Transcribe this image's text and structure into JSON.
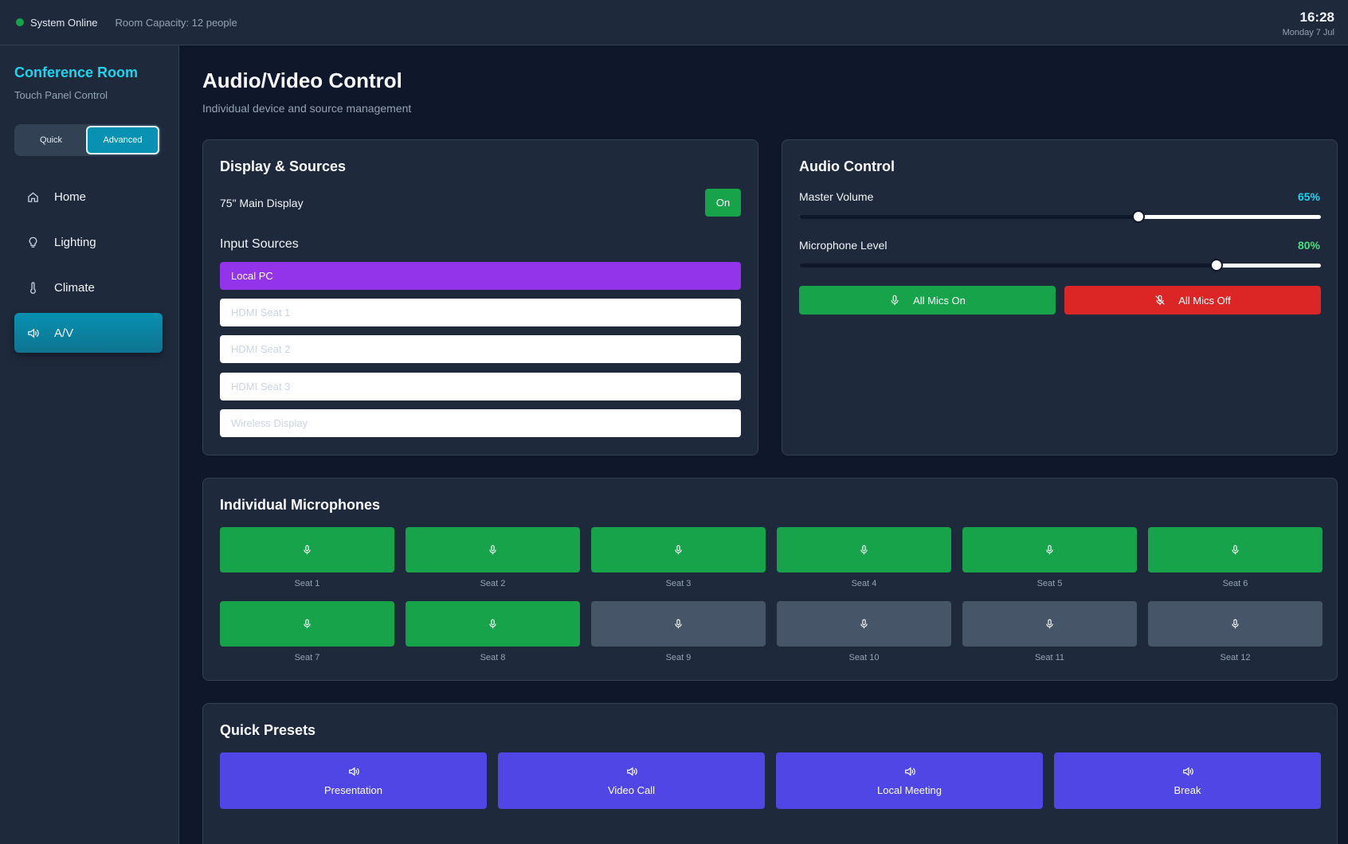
{
  "topbar": {
    "status": "System Online",
    "capacity": "Room Capacity: 12 people",
    "time": "16:28",
    "date": "Monday 7 Jul"
  },
  "sidebar": {
    "title": "Conference Room",
    "subtitle": "Touch Panel Control",
    "modes": [
      {
        "label": "Quick",
        "active": false
      },
      {
        "label": "Advanced",
        "active": true
      }
    ],
    "items": [
      {
        "label": "Home",
        "icon": "home-icon",
        "active": false
      },
      {
        "label": "Lighting",
        "icon": "lightbulb-icon",
        "active": false
      },
      {
        "label": "Climate",
        "icon": "thermometer-icon",
        "active": false
      },
      {
        "label": "A/V",
        "icon": "speaker-icon",
        "active": true
      }
    ]
  },
  "main": {
    "title": "Audio/Video Control",
    "subtitle": "Individual device and source management"
  },
  "display": {
    "title": "Display & Sources",
    "device": "75\" Main Display",
    "power_label": "On",
    "inputs_title": "Input Sources",
    "sources": [
      {
        "label": "Local PC",
        "active": true
      },
      {
        "label": "HDMI Seat 1",
        "active": false
      },
      {
        "label": "HDMI Seat 2",
        "active": false
      },
      {
        "label": "HDMI Seat 3",
        "active": false
      },
      {
        "label": "Wireless Display",
        "active": false
      }
    ]
  },
  "audio": {
    "title": "Audio Control",
    "master_label": "Master Volume",
    "master_value": "65%",
    "master_level": 0.65,
    "mic_label": "Microphone Level",
    "mic_value": "80%",
    "mic_level": 0.8,
    "all_on_label": "All Mics On",
    "all_off_label": "All Mics Off",
    "colors": {
      "master": "#22d3ee",
      "mic": "#4ade80",
      "on": "#16a34a",
      "off": "#dc2626"
    }
  },
  "mics": {
    "title": "Individual Microphones",
    "seats": [
      {
        "label": "Seat 1",
        "on": true
      },
      {
        "label": "Seat 2",
        "on": true
      },
      {
        "label": "Seat 3",
        "on": true
      },
      {
        "label": "Seat 4",
        "on": true
      },
      {
        "label": "Seat 5",
        "on": true
      },
      {
        "label": "Seat 6",
        "on": true
      },
      {
        "label": "Seat 7",
        "on": true
      },
      {
        "label": "Seat 8",
        "on": true
      },
      {
        "label": "Seat 9",
        "on": false
      },
      {
        "label": "Seat 10",
        "on": false
      },
      {
        "label": "Seat 11",
        "on": false
      },
      {
        "label": "Seat 12",
        "on": false
      }
    ]
  },
  "presets": {
    "title": "Quick Presets",
    "items": [
      {
        "label": "Presentation",
        "icon": "speaker-icon"
      },
      {
        "label": "Video Call",
        "icon": "speaker-icon"
      },
      {
        "label": "Local Meeting",
        "icon": "speaker-icon"
      },
      {
        "label": "Break",
        "icon": "speaker-icon"
      }
    ]
  }
}
